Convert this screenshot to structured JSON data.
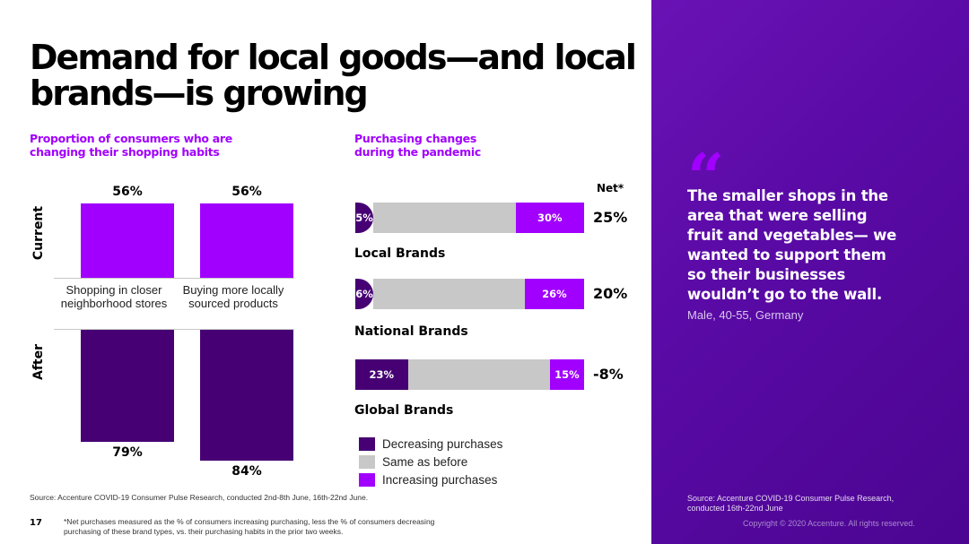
{
  "title": "Demand for local goods—and local brands—is growing",
  "left_chart_title": "Proportion of consumers who are changing their shopping habits",
  "right_chart_title": "Purchasing changes during the pandemic",
  "net_header": "Net*",
  "colors": {
    "accent": "#a100ff",
    "dark_purple": "#460073",
    "gray": "#c8c8c8",
    "panel": "#5a0aa6"
  },
  "chart_data": [
    {
      "type": "bar",
      "title": "Proportion of consumers who are changing their shopping habits",
      "categories": [
        "Shopping in closer neighborhood stores",
        "Buying more locally sourced products"
      ],
      "series": [
        {
          "name": "Current",
          "values": [
            56,
            56
          ],
          "labels": [
            "56%",
            "56%"
          ]
        },
        {
          "name": "After",
          "values": [
            79,
            84
          ],
          "labels": [
            "79%",
            "84%"
          ]
        }
      ],
      "unit": "%"
    },
    {
      "type": "bar",
      "title": "Purchasing changes during the pandemic",
      "categories": [
        "Local Brands",
        "National Brands",
        "Global Brands"
      ],
      "series": [
        {
          "name": "Decreasing purchases",
          "values": [
            5,
            6,
            23
          ],
          "labels": [
            "5%",
            "6%",
            "23%"
          ]
        },
        {
          "name": "Same as before",
          "values": [
            65,
            68,
            62
          ]
        },
        {
          "name": "Increasing purchases",
          "values": [
            30,
            26,
            15
          ],
          "labels": [
            "30%",
            "26%",
            "15%"
          ]
        }
      ],
      "net": [
        25,
        20,
        -8
      ],
      "net_labels": [
        "25%",
        "20%",
        "-8%"
      ],
      "stacked": true,
      "unit": "%"
    }
  ],
  "legend": [
    "Decreasing purchases",
    "Same as before",
    "Increasing purchases"
  ],
  "quote": {
    "mark": "“",
    "text": "The smaller shops in the area that were selling fruit and vegetables— we wanted to support them so their businesses wouldn’t go to the wall.",
    "attribution": "Male, 40-55, Germany"
  },
  "panel_source": "Source: Accenture COVID-19 Consumer Pulse Research, conducted 16th-22nd June",
  "copyright": "Copyright © 2020 Accenture. All rights reserved.",
  "source": "Source: Accenture COVID-19 Consumer Pulse Research, conducted 2nd-8th June, 16th-22nd June.",
  "footnote": "*Net purchases measured as the % of consumers increasing purchasing, less the % of consumers decreasing purchasing of these brand types, vs. their purchasing habits in the prior two weeks.",
  "page_number": "17"
}
